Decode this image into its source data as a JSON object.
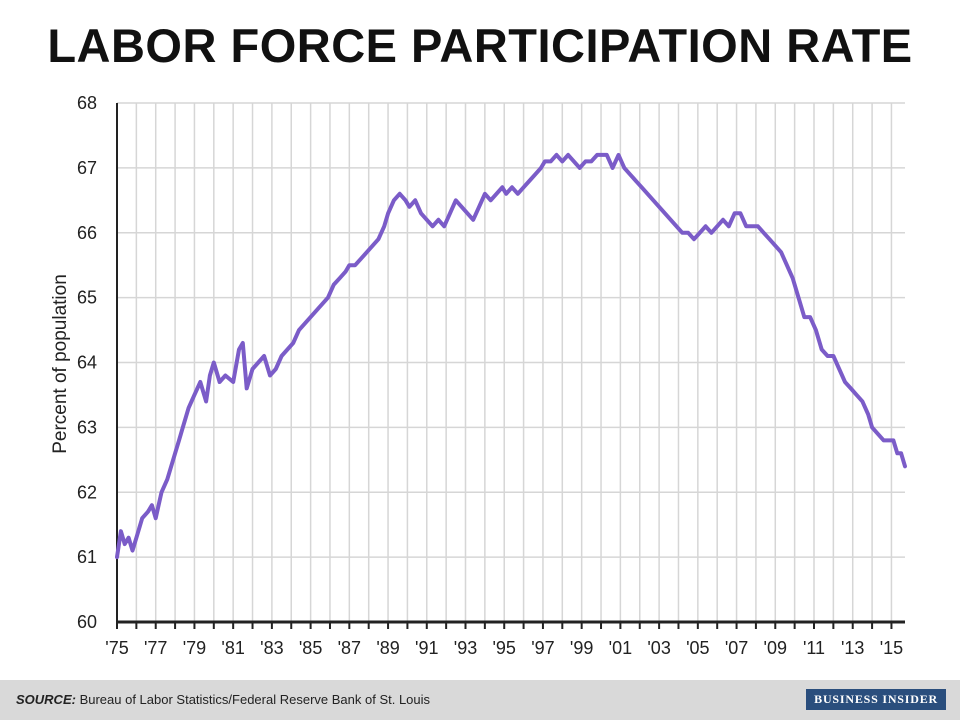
{
  "chart_data": {
    "type": "line",
    "title": "LABOR FORCE PARTICIPATION RATE",
    "xlabel": "",
    "ylabel": "Percent of population",
    "xlim": [
      1975,
      2015.7
    ],
    "ylim": [
      60,
      68
    ],
    "yticks": [
      "60",
      "61",
      "62",
      "63",
      "64",
      "65",
      "66",
      "67",
      "68"
    ],
    "xtick_labels": [
      "'75",
      "'77",
      "'79",
      "'81",
      "'83",
      "'85",
      "'87",
      "'89",
      "'91",
      "'93",
      "'95",
      "'97",
      "'99",
      "'01",
      "'03",
      "'05",
      "'07",
      "'09",
      "'11",
      "'13",
      "'15"
    ],
    "xtick_years": [
      1975,
      1977,
      1979,
      1981,
      1983,
      1985,
      1987,
      1989,
      1991,
      1993,
      1995,
      1997,
      1999,
      2001,
      2003,
      2005,
      2007,
      2009,
      2011,
      2013,
      2015
    ],
    "grid": true,
    "line_color": "#7b5cc8",
    "series": [
      {
        "x": [
          1975.0,
          1975.2,
          1975.4,
          1975.6,
          1975.8,
          1976.0,
          1976.3,
          1976.6,
          1976.8,
          1977.0,
          1977.3,
          1977.6,
          1977.8,
          1978.0,
          1978.2,
          1978.4,
          1978.7,
          1979.0,
          1979.3,
          1979.6,
          1979.8,
          1980.0,
          1980.3,
          1980.6,
          1981.0,
          1981.3,
          1981.5,
          1981.7,
          1982.0,
          1982.3,
          1982.6,
          1982.9,
          1983.2,
          1983.5,
          1983.8,
          1984.1,
          1984.4,
          1984.7,
          1985.0,
          1985.3,
          1985.6,
          1985.9,
          1986.2,
          1986.5,
          1986.8,
          1987.0,
          1987.3,
          1987.6,
          1987.9,
          1988.2,
          1988.5,
          1988.8,
          1989.0,
          1989.3,
          1989.6,
          1989.9,
          1990.1,
          1990.4,
          1990.7,
          1991.0,
          1991.3,
          1991.6,
          1991.9,
          1992.2,
          1992.5,
          1992.8,
          1993.1,
          1993.4,
          1993.7,
          1994.0,
          1994.3,
          1994.6,
          1994.9,
          1995.1,
          1995.4,
          1995.7,
          1996.0,
          1996.3,
          1996.6,
          1996.9,
          1997.1,
          1997.4,
          1997.7,
          1998.0,
          1998.3,
          1998.6,
          1998.9,
          1999.2,
          1999.5,
          1999.8,
          2000.1,
          2000.3,
          2000.6,
          2000.9,
          2001.2,
          2001.5,
          2001.8,
          2002.1,
          2002.4,
          2002.7,
          2003.0,
          2003.3,
          2003.6,
          2003.9,
          2004.2,
          2004.5,
          2004.8,
          2005.1,
          2005.4,
          2005.7,
          2006.0,
          2006.3,
          2006.6,
          2006.9,
          2007.2,
          2007.5,
          2007.8,
          2008.1,
          2008.4,
          2008.7,
          2009.0,
          2009.3,
          2009.6,
          2009.9,
          2010.2,
          2010.5,
          2010.8,
          2011.1,
          2011.4,
          2011.7,
          2012.0,
          2012.3,
          2012.6,
          2012.9,
          2013.2,
          2013.5,
          2013.8,
          2014.0,
          2014.3,
          2014.6,
          2014.9,
          2015.1,
          2015.3,
          2015.5,
          2015.7
        ],
        "values": [
          61.0,
          61.4,
          61.2,
          61.3,
          61.1,
          61.3,
          61.6,
          61.7,
          61.8,
          61.6,
          62.0,
          62.2,
          62.4,
          62.6,
          62.8,
          63.0,
          63.3,
          63.5,
          63.7,
          63.4,
          63.8,
          64.0,
          63.7,
          63.8,
          63.7,
          64.2,
          64.3,
          63.6,
          63.9,
          64.0,
          64.1,
          63.8,
          63.9,
          64.1,
          64.2,
          64.3,
          64.5,
          64.6,
          64.7,
          64.8,
          64.9,
          65.0,
          65.2,
          65.3,
          65.4,
          65.5,
          65.5,
          65.6,
          65.7,
          65.8,
          65.9,
          66.1,
          66.3,
          66.5,
          66.6,
          66.5,
          66.4,
          66.5,
          66.3,
          66.2,
          66.1,
          66.2,
          66.1,
          66.3,
          66.5,
          66.4,
          66.3,
          66.2,
          66.4,
          66.6,
          66.5,
          66.6,
          66.7,
          66.6,
          66.7,
          66.6,
          66.7,
          66.8,
          66.9,
          67.0,
          67.1,
          67.1,
          67.2,
          67.1,
          67.2,
          67.1,
          67.0,
          67.1,
          67.1,
          67.2,
          67.2,
          67.2,
          67.0,
          67.2,
          67.0,
          66.9,
          66.8,
          66.7,
          66.6,
          66.5,
          66.4,
          66.3,
          66.2,
          66.1,
          66.0,
          66.0,
          65.9,
          66.0,
          66.1,
          66.0,
          66.1,
          66.2,
          66.1,
          66.3,
          66.3,
          66.1,
          66.1,
          66.1,
          66.0,
          65.9,
          65.8,
          65.7,
          65.5,
          65.3,
          65.0,
          64.7,
          64.7,
          64.5,
          64.2,
          64.1,
          64.1,
          63.9,
          63.7,
          63.6,
          63.5,
          63.4,
          63.2,
          63.0,
          62.9,
          62.8,
          62.8,
          62.8,
          62.6,
          62.6,
          62.4
        ]
      }
    ]
  },
  "footer": {
    "source_label": "SOURCE:",
    "source_text": " Bureau of Labor Statistics/Federal Reserve Bank of St. Louis",
    "brand": "BUSINESS INSIDER"
  }
}
